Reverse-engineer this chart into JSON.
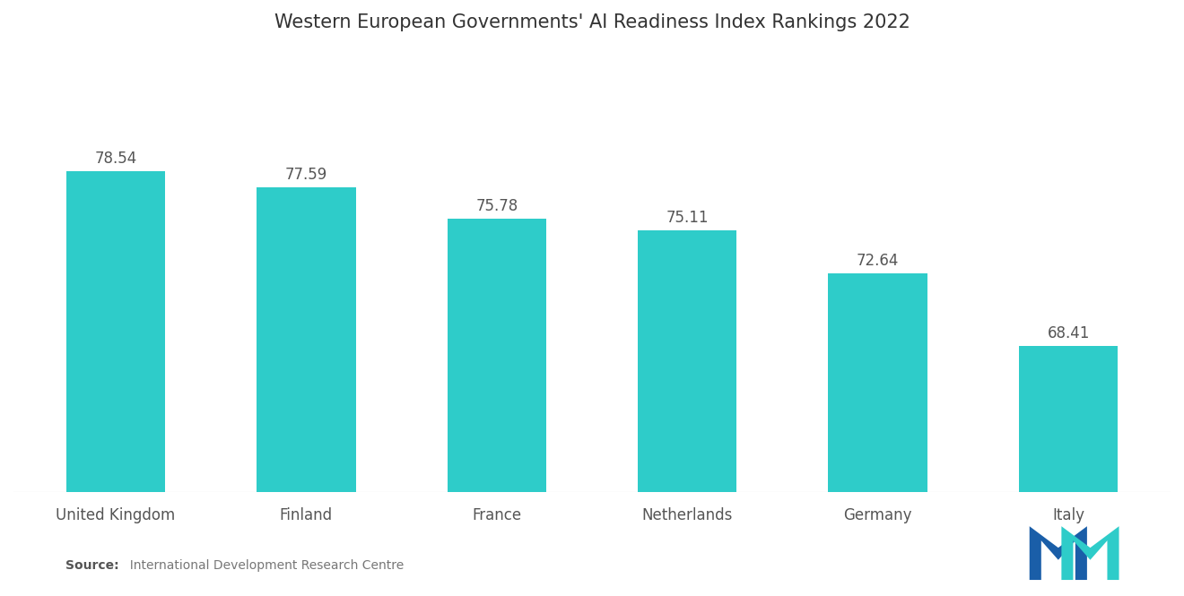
{
  "title": "Western European Governments' AI Readiness Index Rankings 2022",
  "categories": [
    "United Kingdom",
    "Finland",
    "France",
    "Netherlands",
    "Germany",
    "Italy"
  ],
  "values": [
    78.54,
    77.59,
    75.78,
    75.11,
    72.64,
    68.41
  ],
  "bar_color": "#2ECCC9",
  "background_color": "#ffffff",
  "title_fontsize": 15,
  "label_fontsize": 12,
  "value_fontsize": 12,
  "source_bold": "Source:",
  "source_rest": "  International Development Research Centre",
  "ylim_min": 60,
  "ylim_max": 85,
  "bar_width": 0.52
}
